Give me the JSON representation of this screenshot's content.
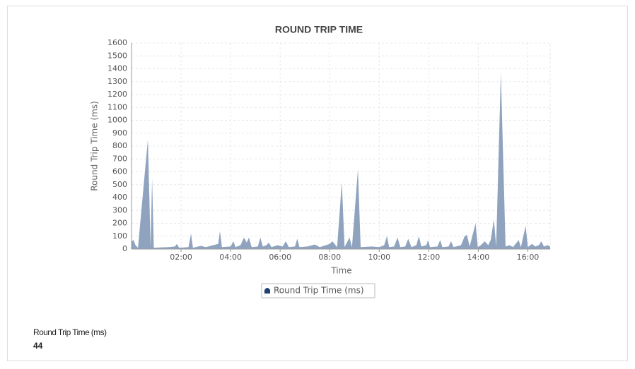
{
  "chart_data": {
    "type": "area",
    "title": "ROUND TRIP TIME",
    "x_label": "Time",
    "y_label": "Round Trip Time (ms)",
    "x": [
      0,
      0.08,
      0.16,
      0.26,
      0.66,
      0.77,
      0.83,
      0.9,
      1.5,
      1.75,
      1.83,
      1.92,
      2.3,
      2.4,
      2.48,
      2.8,
      3.0,
      3.3,
      3.5,
      3.57,
      3.65,
      4.0,
      4.11,
      4.2,
      4.4,
      4.54,
      4.65,
      4.74,
      4.85,
      5.1,
      5.2,
      5.3,
      5.45,
      5.54,
      5.65,
      5.9,
      6.1,
      6.23,
      6.35,
      6.6,
      6.69,
      6.78,
      7.1,
      7.4,
      7.6,
      8.0,
      8.11,
      8.3,
      8.49,
      8.6,
      8.8,
      8.9,
      9.14,
      9.25,
      9.7,
      10.0,
      10.2,
      10.31,
      10.4,
      10.6,
      10.74,
      10.85,
      11.05,
      11.17,
      11.3,
      11.5,
      11.6,
      11.7,
      11.9,
      11.97,
      12.05,
      12.35,
      12.46,
      12.55,
      12.8,
      12.9,
      13.0,
      13.3,
      13.45,
      13.54,
      13.65,
      13.89,
      13.98,
      14.1,
      14.26,
      14.4,
      14.5,
      14.63,
      14.72,
      14.91,
      15.1,
      15.26,
      15.4,
      15.63,
      15.72,
      15.91,
      16.0,
      16.17,
      16.3,
      16.45,
      16.54,
      16.65,
      16.8,
      16.9
    ],
    "series": [
      {
        "name": "Round Trip Time (ms)",
        "color": "#8fa3bf",
        "values": [
          60,
          70,
          30,
          10,
          850,
          20,
          550,
          10,
          15,
          20,
          40,
          10,
          15,
          120,
          10,
          25,
          15,
          30,
          40,
          140,
          15,
          20,
          60,
          15,
          30,
          90,
          50,
          90,
          15,
          20,
          90,
          20,
          30,
          50,
          15,
          30,
          20,
          60,
          15,
          20,
          80,
          15,
          20,
          35,
          15,
          40,
          60,
          15,
          520,
          15,
          90,
          15,
          620,
          15,
          20,
          15,
          30,
          100,
          15,
          20,
          90,
          15,
          20,
          80,
          15,
          30,
          100,
          20,
          30,
          70,
          15,
          20,
          70,
          15,
          20,
          60,
          15,
          30,
          100,
          110,
          20,
          200,
          15,
          30,
          60,
          30,
          70,
          230,
          20,
          1370,
          20,
          30,
          15,
          70,
          15,
          180,
          15,
          40,
          20,
          30,
          60,
          20,
          30,
          20
        ]
      }
    ],
    "xlim": [
      0,
      16.9
    ],
    "ylim": [
      0,
      1600
    ],
    "xticks": [
      {
        "value": 2,
        "label": "02:00"
      },
      {
        "value": 4,
        "label": "04:00"
      },
      {
        "value": 6,
        "label": "06:00"
      },
      {
        "value": 8,
        "label": "08:00"
      },
      {
        "value": 10,
        "label": "10:00"
      },
      {
        "value": 12,
        "label": "12:00"
      },
      {
        "value": 14,
        "label": "14:00"
      },
      {
        "value": 16,
        "label": "16:00"
      }
    ],
    "yticks": [
      0,
      100,
      200,
      300,
      400,
      500,
      600,
      700,
      800,
      900,
      1000,
      1100,
      1200,
      1300,
      1400,
      1500,
      1600
    ],
    "grid": true
  },
  "summary": {
    "label": "Round Trip Time (ms)",
    "value": 44
  }
}
